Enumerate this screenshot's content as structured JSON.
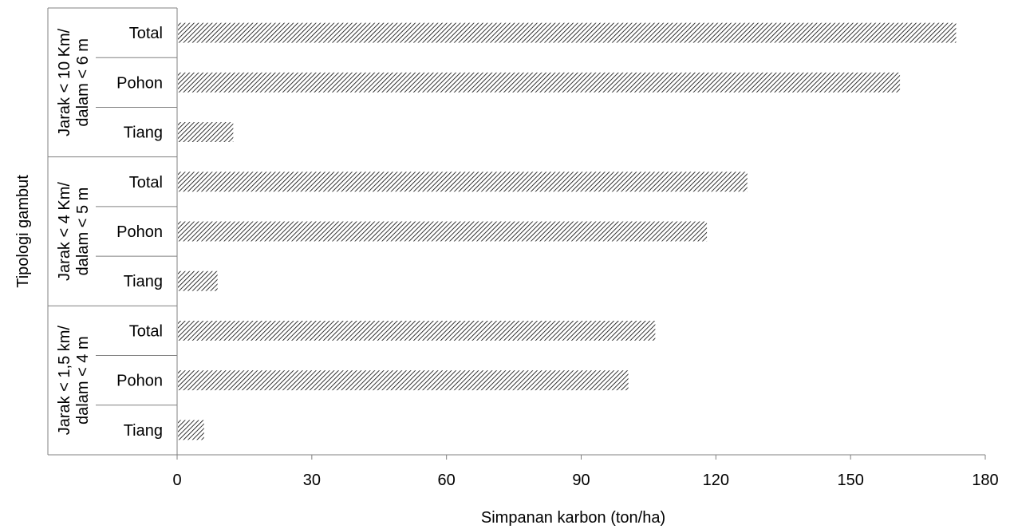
{
  "chart_data": {
    "type": "bar",
    "orientation": "horizontal",
    "xlabel": "Simpanan karbon (ton/ha)",
    "ylabel": "Tipologi gambut",
    "xlim": [
      0,
      180
    ],
    "xticks": [
      "0",
      "30",
      "60",
      "90",
      "120",
      "150",
      "180"
    ],
    "grid": false,
    "legend": "none",
    "bar_fill": "diagonal-hatch",
    "colors": {
      "bar_hatch": "#000000",
      "bar_background": "#ffffff",
      "axis": "#808080"
    },
    "groups": [
      {
        "label_line1": "Jarak < 10 Km/",
        "label_line2": "dalam < 6 m",
        "bars": [
          {
            "category": "Total",
            "value": 173.5
          },
          {
            "category": "Pohon",
            "value": 161
          },
          {
            "category": "Tiang",
            "value": 12.5
          }
        ]
      },
      {
        "label_line1": "Jarak < 4 Km/",
        "label_line2": "dalam < 5 m",
        "bars": [
          {
            "category": "Total",
            "value": 127
          },
          {
            "category": "Pohon",
            "value": 118
          },
          {
            "category": "Tiang",
            "value": 9
          }
        ]
      },
      {
        "label_line1": "Jarak < 1,5 km/",
        "label_line2": "dalam < 4 m",
        "bars": [
          {
            "category": "Total",
            "value": 106.5
          },
          {
            "category": "Pohon",
            "value": 100.5
          },
          {
            "category": "Tiang",
            "value": 6
          }
        ]
      }
    ]
  }
}
